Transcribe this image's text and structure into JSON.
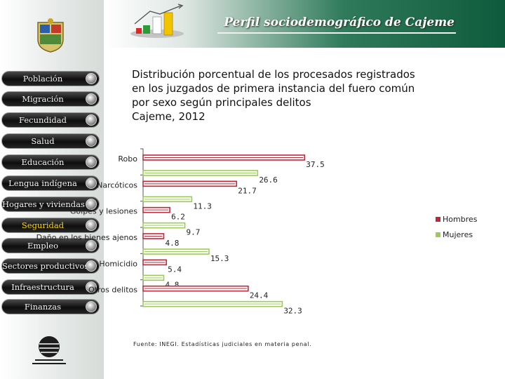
{
  "header": {
    "title": "Perfil sociodemográfico de Cajeme"
  },
  "sidebar": {
    "items": [
      {
        "label": "Población"
      },
      {
        "label": "Migración"
      },
      {
        "label": "Fecundidad"
      },
      {
        "label": "Salud"
      },
      {
        "label": "Educación"
      },
      {
        "label": "Lengua indígena"
      },
      {
        "label": "Hogares y viviendas"
      },
      {
        "label": "Seguridad",
        "active": true
      },
      {
        "label": "Empleo"
      },
      {
        "label": "Sectores productivos"
      },
      {
        "label": "Infraestructura"
      },
      {
        "label": "Finanzas"
      }
    ]
  },
  "chart_title_lines": [
    "Distribución porcentual de los procesados registrados",
    "en los juzgados de primera instancia del fuero común",
    "por sexo según principales delitos",
    "Cajeme, 2012"
  ],
  "footnote": "Fuente: INEGI. Estadísticas judiciales en materia penal.",
  "colors": {
    "hombres": "#c0283a",
    "mujeres": "#9ccc58",
    "active_nav": "#ffd600"
  },
  "chart_data": {
    "type": "bar",
    "orientation": "horizontal",
    "categories": [
      "Robo",
      "Narcóticos",
      "Golpes y lesiones",
      "Daño en los bienes ajenos",
      "Homicidio",
      "Otros delitos"
    ],
    "series": [
      {
        "name": "Hombres",
        "values": [
          37.5,
          21.7,
          6.2,
          4.8,
          5.4,
          24.4
        ]
      },
      {
        "name": "Mujeres",
        "values": [
          26.6,
          11.3,
          9.7,
          15.3,
          4.8,
          32.3
        ]
      }
    ],
    "legend_position": "right",
    "grid": false
  }
}
